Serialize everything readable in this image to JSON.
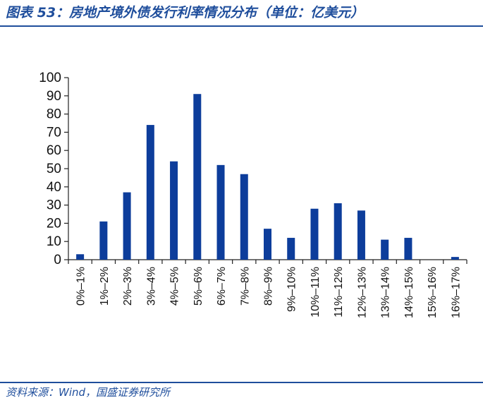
{
  "header": {
    "title": "图表 53：房地产境外债发行利率情况分布（单位：亿美元）"
  },
  "footer": {
    "source": "资料来源：Wind，国盛证券研究所"
  },
  "colors": {
    "accent": "#1f4e9c",
    "bar": "#0d3d9b",
    "axis": "#222222"
  },
  "chart_data": {
    "type": "bar",
    "title": "",
    "xlabel": "",
    "ylabel": "",
    "categories": [
      "0%–1%",
      "1%–2%",
      "2%–3%",
      "3%–4%",
      "4%–5%",
      "5%–6%",
      "6%–7%",
      "7%–8%",
      "8%–9%",
      "9%–10%",
      "10%–11%",
      "11%–12%",
      "12%–13%",
      "13%–14%",
      "14%–15%",
      "15%–16%",
      "16%–17%"
    ],
    "values": [
      3,
      21,
      37,
      74,
      54,
      91,
      52,
      47,
      17,
      12,
      28,
      31,
      27,
      11,
      12,
      0,
      1.5
    ],
    "ylim": [
      0,
      100
    ],
    "yticks": [
      0,
      10,
      20,
      30,
      40,
      50,
      60,
      70,
      80,
      90,
      100
    ],
    "grid": false,
    "legend": "none"
  }
}
